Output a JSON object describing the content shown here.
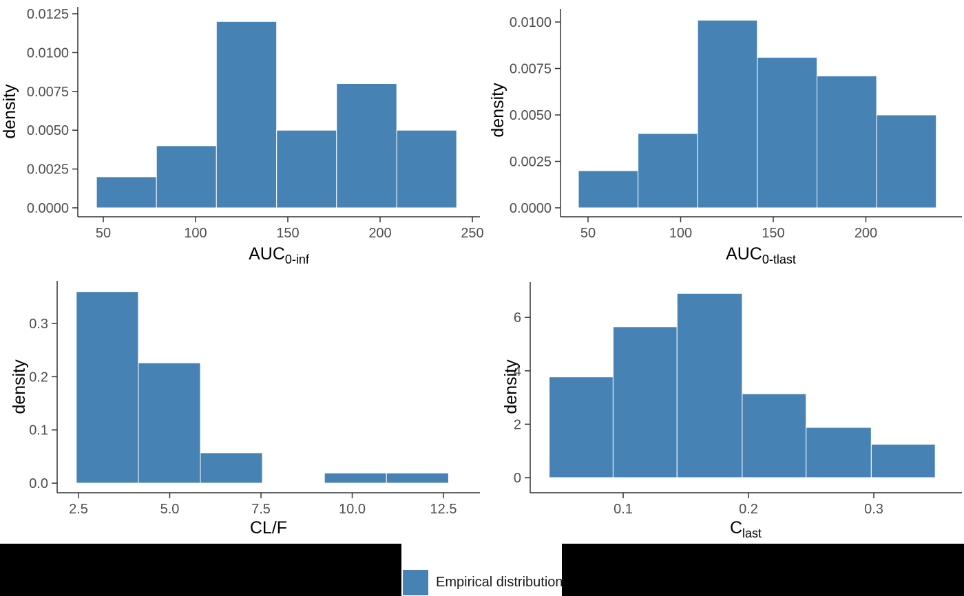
{
  "legend": {
    "label": "Empirical distribution"
  },
  "colors": {
    "bar_fill": "#4682B4",
    "bar_stroke": "#FFFFFF",
    "axis_line": "#333333",
    "tick_text": "#4D4D4D",
    "title_text": "#000000",
    "redaction": "#000000",
    "background": "#FFFFFF"
  },
  "chart_data": [
    {
      "type": "bar",
      "subtype": "histogram",
      "xlabel_main": "AUC",
      "xlabel_sub": "0-inf",
      "ylabel": "density",
      "bin_edges": [
        46.3,
        78.8,
        111.3,
        143.9,
        176.4,
        209.0,
        241.5
      ],
      "values": [
        0.002,
        0.004,
        0.012,
        0.005,
        0.008,
        0.005
      ],
      "x_ticks": [
        {
          "v": 50,
          "label": "50"
        },
        {
          "v": 100,
          "label": "100"
        },
        {
          "v": 150,
          "label": "150"
        },
        {
          "v": 200,
          "label": "200"
        },
        {
          "v": 250,
          "label": "250"
        }
      ],
      "y_ticks": [
        {
          "v": 0.0,
          "label": "0.0000"
        },
        {
          "v": 0.0025,
          "label": "0.0025"
        },
        {
          "v": 0.005,
          "label": "0.0050"
        },
        {
          "v": 0.0075,
          "label": "0.0075"
        },
        {
          "v": 0.01,
          "label": "0.0100"
        },
        {
          "v": 0.0125,
          "label": "0.0125"
        }
      ],
      "xlim": [
        36,
        254
      ],
      "ylim": [
        0,
        0.0129
      ],
      "grid": false,
      "legend_position": "none"
    },
    {
      "type": "bar",
      "subtype": "histogram",
      "xlabel_main": "AUC",
      "xlabel_sub": "0-tlast",
      "ylabel": "density",
      "bin_edges": [
        44.8,
        77.0,
        109.2,
        141.4,
        173.6,
        205.8,
        238.0
      ],
      "values": [
        0.002,
        0.004,
        0.0101,
        0.0081,
        0.0071,
        0.005
      ],
      "x_ticks": [
        {
          "v": 50,
          "label": "50"
        },
        {
          "v": 100,
          "label": "100"
        },
        {
          "v": 150,
          "label": "150"
        },
        {
          "v": 200,
          "label": "200"
        }
      ],
      "y_ticks": [
        {
          "v": 0.0,
          "label": "0.0000"
        },
        {
          "v": 0.0025,
          "label": "0.0025"
        },
        {
          "v": 0.005,
          "label": "0.0050"
        },
        {
          "v": 0.0075,
          "label": "0.0075"
        },
        {
          "v": 0.01,
          "label": "0.0100"
        }
      ],
      "xlim": [
        38,
        240
      ],
      "ylim": [
        0,
        0.0106
      ],
      "grid": false,
      "legend_position": "none"
    },
    {
      "type": "bar",
      "subtype": "histogram",
      "xlabel_main": "CL/F",
      "xlabel_sub": "",
      "ylabel": "density",
      "bin_edges": [
        2.44,
        4.14,
        5.84,
        7.54,
        9.24,
        10.94,
        12.64
      ],
      "values": [
        0.36,
        0.226,
        0.057,
        0,
        0.019,
        0.019
      ],
      "x_ticks": [
        {
          "v": 2.5,
          "label": "2.5"
        },
        {
          "v": 5.0,
          "label": "5.0"
        },
        {
          "v": 7.5,
          "label": "7.5"
        },
        {
          "v": 10.0,
          "label": "10.0"
        },
        {
          "v": 12.5,
          "label": "12.5"
        }
      ],
      "y_ticks": [
        {
          "v": 0.0,
          "label": "0.0"
        },
        {
          "v": 0.1,
          "label": "0.1"
        },
        {
          "v": 0.2,
          "label": "0.2"
        },
        {
          "v": 0.3,
          "label": "0.3"
        }
      ],
      "xlim": [
        1.9,
        13.1
      ],
      "ylim": [
        0,
        0.38
      ],
      "grid": false,
      "legend_position": "none"
    },
    {
      "type": "bar",
      "subtype": "histogram",
      "xlabel_main": "C",
      "xlabel_sub": "last",
      "ylabel": "density",
      "bin_edges": [
        0.041,
        0.092,
        0.143,
        0.195,
        0.246,
        0.298,
        0.349
      ],
      "values": [
        3.77,
        5.65,
        6.9,
        3.14,
        1.88,
        1.25
      ],
      "x_ticks": [
        {
          "v": 0.1,
          "label": "0.1"
        },
        {
          "v": 0.2,
          "label": "0.2"
        },
        {
          "v": 0.3,
          "label": "0.3"
        }
      ],
      "y_ticks": [
        {
          "v": 0,
          "label": "0"
        },
        {
          "v": 2,
          "label": "2"
        },
        {
          "v": 4,
          "label": "4"
        },
        {
          "v": 6,
          "label": "6"
        }
      ],
      "xlim": [
        0.025,
        0.37
      ],
      "ylim": [
        0,
        7.3
      ],
      "grid": false,
      "legend_position": "bottom"
    }
  ]
}
